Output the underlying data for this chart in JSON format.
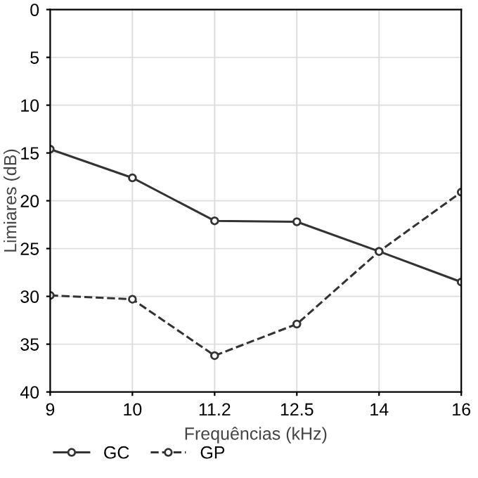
{
  "chart_data": {
    "type": "line",
    "xlabel": "Frequências (kHz)",
    "ylabel": "Limiares (dB)",
    "categories": [
      "9",
      "10",
      "11.2",
      "12.5",
      "14",
      "16"
    ],
    "series": [
      {
        "name": "GC",
        "color": "#333333",
        "values": [
          14.6,
          17.6,
          22.1,
          22.2,
          25.3,
          28.5
        ],
        "line_style": "solid"
      },
      {
        "name": "GP",
        "color": "#333333",
        "values": [
          29.9,
          30.3,
          36.2,
          32.9,
          25.3,
          19.1
        ],
        "line_style": "dashed"
      }
    ],
    "ylim": [
      40,
      0
    ],
    "yticks": [
      0,
      5,
      10,
      15,
      20,
      25,
      30,
      35,
      40
    ],
    "grid": true,
    "legend": "bottom left",
    "marker": "circle"
  }
}
